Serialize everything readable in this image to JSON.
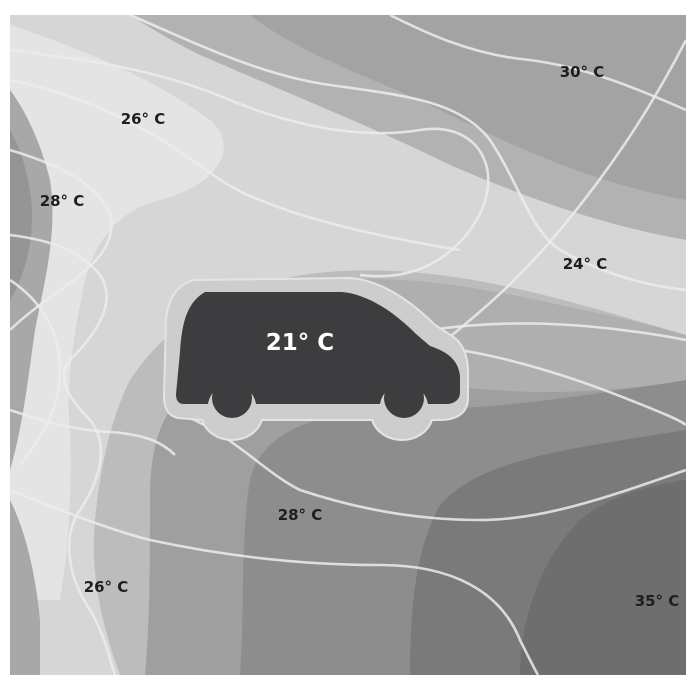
{
  "map": {
    "vehicle_temperature": "21° C",
    "labels": [
      {
        "id": "temp-label-30",
        "text": "30° C"
      },
      {
        "id": "temp-label-26-top",
        "text": "26° C"
      },
      {
        "id": "temp-label-28-left",
        "text": "28° C"
      },
      {
        "id": "temp-label-24",
        "text": "24° C"
      },
      {
        "id": "temp-label-28-bottom",
        "text": "28° C"
      },
      {
        "id": "temp-label-26-bottom",
        "text": "26° C"
      },
      {
        "id": "temp-label-35",
        "text": "35° C"
      }
    ],
    "colors": {
      "lightest": "#e2e2e2",
      "light": "#d3d3d3",
      "mid_light": "#bdbdbd",
      "mid": "#a9a9a9",
      "mid_dark": "#979797",
      "dark": "#858585",
      "darkest": "#737373",
      "vehicle": "#3d3d3f",
      "isoline": "#ececec"
    }
  }
}
